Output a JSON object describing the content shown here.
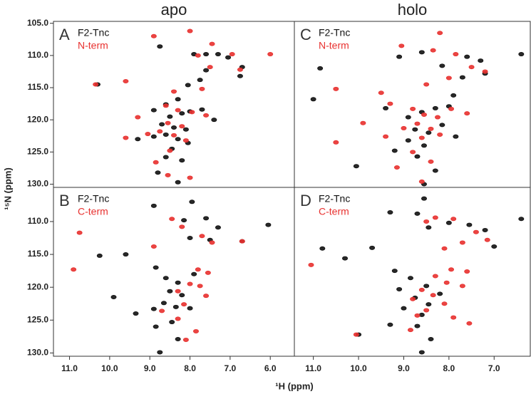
{
  "x_label": "¹H (ppm)",
  "y_label": "¹⁵N (ppm)",
  "chart_data": [
    {
      "type": "scatter",
      "title": "apo",
      "panel_label": "A",
      "xlim": [
        11.4,
        5.4
      ],
      "ylim": [
        104.7,
        130.5
      ],
      "yticks": [
        {
          "value": 105,
          "label": "105.0"
        },
        {
          "value": 110,
          "label": "110.0"
        },
        {
          "value": 115,
          "label": "115.0"
        },
        {
          "value": 120,
          "label": "120.0"
        },
        {
          "value": 125,
          "label": "125.0"
        },
        {
          "value": 130,
          "label": "130.0"
        }
      ],
      "series": [
        {
          "name": "F2-Tnc",
          "color": "#111111",
          "x": [
            8.75,
            7.9,
            7.6,
            7.3,
            7.05,
            6.7,
            6.75,
            7.6,
            7.75,
            8.05,
            8.3,
            8.6,
            8.9,
            8.5,
            8.2,
            8.0,
            7.7,
            8.7,
            8.4,
            8.1,
            8.6,
            8.3,
            8.9,
            8.05,
            8.45,
            8.2,
            8.6,
            9.3,
            10.3,
            7.4,
            8.8,
            8.3
          ],
          "values": [
            108.6,
            109.8,
            109.8,
            109.8,
            110.3,
            111.8,
            113.2,
            112.3,
            113.8,
            114.6,
            116.8,
            117.6,
            118.5,
            119.5,
            119.0,
            118.7,
            118.4,
            120.7,
            121.2,
            121.5,
            122.3,
            123.0,
            122.6,
            123.6,
            124.5,
            126.3,
            125.8,
            123.0,
            114.5,
            120.0,
            128.2,
            129.7
          ]
        },
        {
          "name": "N-term",
          "color": "#e8312f",
          "x": [
            8.9,
            8.0,
            7.45,
            7.8,
            7.5,
            6.75,
            6.95,
            7.7,
            8.4,
            9.6,
            10.35,
            9.3,
            8.6,
            8.3,
            7.95,
            7.6,
            8.55,
            8.2,
            8.75,
            8.4,
            9.05,
            9.6,
            8.1,
            8.5,
            8.85,
            8.55,
            8.0,
            6.0
          ],
          "values": [
            107.0,
            106.2,
            108.2,
            110.0,
            111.8,
            112.2,
            109.8,
            115.2,
            115.6,
            114.0,
            114.5,
            119.6,
            117.8,
            118.5,
            118.8,
            119.3,
            120.5,
            121.0,
            121.8,
            122.4,
            122.2,
            122.8,
            123.2,
            124.8,
            126.6,
            128.6,
            129.0,
            109.8
          ]
        }
      ]
    },
    {
      "type": "scatter",
      "title": "holo",
      "panel_label": "C",
      "xlim": [
        11.42,
        6.2
      ],
      "ylim": [
        104.7,
        130.5
      ],
      "series": [
        {
          "name": "F2-Tnc",
          "color": "#111111",
          "x": [
            10.85,
            11.0,
            10.05,
            9.1,
            8.6,
            8.15,
            7.6,
            7.3,
            6.4,
            7.2,
            7.7,
            9.4,
            8.9,
            8.6,
            8.3,
            8.0,
            8.75,
            8.45,
            8.15,
            8.9,
            8.55,
            9.2,
            8.7,
            8.3,
            8.55,
            7.85,
            7.9
          ],
          "values": [
            112.0,
            116.8,
            127.2,
            110.2,
            109.5,
            111.6,
            110.2,
            110.8,
            109.8,
            112.8,
            113.4,
            118.2,
            119.6,
            118.8,
            118.2,
            117.9,
            121.5,
            122.0,
            120.8,
            123.2,
            124.0,
            124.8,
            125.7,
            127.9,
            130.0,
            122.6,
            116.2
          ]
        },
        {
          "name": "N-term",
          "color": "#e8312f",
          "x": [
            8.2,
            9.05,
            8.35,
            7.85,
            7.5,
            7.2,
            8.0,
            8.5,
            9.5,
            10.5,
            9.3,
            8.8,
            8.55,
            8.25,
            7.95,
            7.6,
            8.7,
            8.4,
            9.0,
            8.6,
            8.2,
            9.4,
            9.9,
            8.8,
            9.15,
            8.4,
            8.6,
            10.5
          ],
          "values": [
            106.5,
            108.5,
            109.2,
            109.8,
            111.8,
            112.5,
            113.5,
            114.5,
            115.8,
            115.2,
            117.5,
            118.3,
            119.2,
            119.6,
            118.3,
            119.0,
            120.6,
            121.4,
            121.3,
            122.8,
            122.3,
            122.6,
            120.5,
            125.0,
            127.4,
            126.5,
            129.6,
            123.5
          ]
        }
      ]
    },
    {
      "type": "scatter",
      "panel_label": "B",
      "xlim": [
        11.4,
        5.4
      ],
      "ylim": [
        104.8,
        130.5
      ],
      "xticks": [
        {
          "value": 11,
          "label": "11.0"
        },
        {
          "value": 10,
          "label": "10.0"
        },
        {
          "value": 9,
          "label": "9.0"
        },
        {
          "value": 8,
          "label": "8.0"
        },
        {
          "value": 7,
          "label": "7.0"
        },
        {
          "value": 6,
          "label": "6.0"
        }
      ],
      "yticks": [
        {
          "value": 110,
          "label": "110.0"
        },
        {
          "value": 115,
          "label": "115.0"
        },
        {
          "value": 120,
          "label": "120.0"
        },
        {
          "value": 125,
          "label": "125.0"
        },
        {
          "value": 130,
          "label": "130.0"
        }
      ],
      "series": [
        {
          "name": "F2-Tnc",
          "color": "#111111",
          "x": [
            8.9,
            7.95,
            8.15,
            7.6,
            6.05,
            7.3,
            6.7,
            7.5,
            8.0,
            9.6,
            10.25,
            8.85,
            8.6,
            8.3,
            8.5,
            8.2,
            8.65,
            8.35,
            8.0,
            8.9,
            9.35,
            8.45,
            8.85,
            8.3,
            8.75,
            7.9,
            9.9
          ],
          "values": [
            107.6,
            107.0,
            109.8,
            109.5,
            110.5,
            110.9,
            113.0,
            112.8,
            112.5,
            115.0,
            115.2,
            117.0,
            118.6,
            119.3,
            120.6,
            121.2,
            122.4,
            123.0,
            123.2,
            123.3,
            124.0,
            125.3,
            126.0,
            127.9,
            129.9,
            118.0,
            121.5
          ]
        },
        {
          "name": "C-term",
          "color": "#e8312f",
          "x": [
            10.75,
            10.9,
            8.45,
            8.2,
            7.7,
            7.45,
            7.8,
            7.55,
            8.0,
            7.75,
            8.3,
            7.6,
            8.15,
            8.7,
            8.3,
            6.7,
            8.9,
            8.1,
            7.85
          ],
          "values": [
            111.7,
            117.3,
            109.6,
            110.8,
            112.2,
            113.2,
            117.3,
            117.8,
            119.5,
            119.8,
            120.6,
            121.3,
            122.6,
            123.6,
            124.8,
            113.0,
            113.8,
            128.0,
            126.7
          ]
        }
      ]
    },
    {
      "type": "scatter",
      "panel_label": "D",
      "xlim": [
        11.42,
        6.2
      ],
      "ylim": [
        104.8,
        130.5
      ],
      "xticks": [
        {
          "value": 11,
          "label": "11.0"
        },
        {
          "value": 10,
          "label": "10.0"
        },
        {
          "value": 9,
          "label": "9.0"
        },
        {
          "value": 8,
          "label": "8.0"
        },
        {
          "value": 7,
          "label": "7.0"
        }
      ],
      "series": [
        {
          "name": "F2-Tnc",
          "color": "#111111",
          "x": [
            8.55,
            9.3,
            8.7,
            8.45,
            8.0,
            7.55,
            7.2,
            6.4,
            7.0,
            9.7,
            10.3,
            10.8,
            9.2,
            8.85,
            8.5,
            8.2,
            8.75,
            8.45,
            9.0,
            8.6,
            9.3,
            8.7,
            8.4,
            8.6,
            10.0,
            9.1
          ],
          "values": [
            106.5,
            108.6,
            108.8,
            110.9,
            110.2,
            110.5,
            111.3,
            109.6,
            113.8,
            114.0,
            115.6,
            114.1,
            117.5,
            118.6,
            119.8,
            121.0,
            121.6,
            122.6,
            123.2,
            124.2,
            125.7,
            125.9,
            127.9,
            129.9,
            127.2,
            120.3
          ]
        },
        {
          "name": "C-term",
          "color": "#e8312f",
          "x": [
            8.3,
            7.9,
            8.5,
            7.4,
            7.15,
            7.7,
            8.1,
            11.05,
            7.95,
            7.6,
            8.3,
            8.05,
            7.7,
            8.6,
            8.35,
            8.8,
            8.1,
            8.5,
            7.9,
            8.7,
            10.05,
            8.85,
            7.55
          ],
          "values": [
            109.4,
            109.6,
            110.0,
            111.6,
            112.8,
            113.2,
            114.1,
            116.6,
            117.3,
            117.6,
            118.3,
            119.3,
            119.8,
            120.4,
            121.2,
            121.8,
            122.5,
            123.5,
            124.6,
            124.3,
            127.2,
            126.5,
            125.5
          ]
        }
      ]
    }
  ]
}
